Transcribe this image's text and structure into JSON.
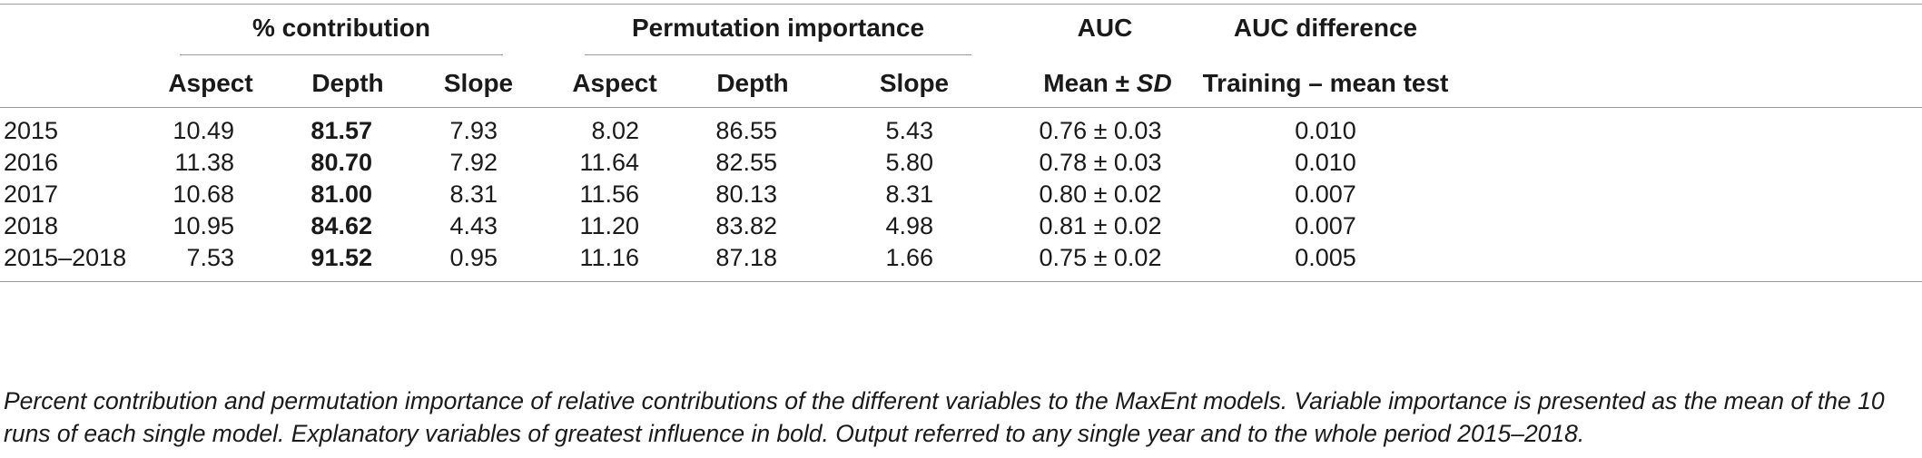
{
  "table": {
    "group_headers": {
      "contribution": "% contribution",
      "permutation": "Permutation importance",
      "auc": "AUC",
      "auc_diff": "AUC difference"
    },
    "sub_headers": {
      "c_aspect": "Aspect",
      "c_depth": "Depth",
      "c_slope": "Slope",
      "p_aspect": "Aspect",
      "p_depth": "Depth",
      "p_slope": "Slope",
      "auc_mean_prefix": "Mean ± ",
      "auc_mean_sd": "SD",
      "auc_diff_sub": "Training – mean test"
    },
    "rows": [
      {
        "year": "2015",
        "c_aspect": "10.49",
        "c_depth": "81.57",
        "c_slope": "7.93",
        "p_aspect": "8.02",
        "p_depth": "86.55",
        "p_slope": "5.43",
        "auc": "0.76 ± 0.03",
        "diff": "0.010"
      },
      {
        "year": "2016",
        "c_aspect": "11.38",
        "c_depth": "80.70",
        "c_slope": "7.92",
        "p_aspect": "11.64",
        "p_depth": "82.55",
        "p_slope": "5.80",
        "auc": "0.78 ± 0.03",
        "diff": "0.010"
      },
      {
        "year": "2017",
        "c_aspect": "10.68",
        "c_depth": "81.00",
        "c_slope": "8.31",
        "p_aspect": "11.56",
        "p_depth": "80.13",
        "p_slope": "8.31",
        "auc": "0.80 ± 0.02",
        "diff": "0.007"
      },
      {
        "year": "2018",
        "c_aspect": "10.95",
        "c_depth": "84.62",
        "c_slope": "4.43",
        "p_aspect": "11.20",
        "p_depth": "83.82",
        "p_slope": "4.98",
        "auc": "0.81 ± 0.02",
        "diff": "0.007"
      },
      {
        "year": "2015–2018",
        "c_aspect": "7.53",
        "c_depth": "91.52",
        "c_slope": "0.95",
        "p_aspect": "11.16",
        "p_depth": "87.18",
        "p_slope": "1.66",
        "auc": "0.75 ± 0.02",
        "diff": "0.005"
      }
    ]
  },
  "caption": "Percent contribution and permutation importance of relative contributions of the different variables to the MaxEnt models. Variable importance is presented as the mean of the 10 runs of each single model. Explanatory variables of greatest influence in bold. Output referred to any single year and to the whole period 2015–2018."
}
